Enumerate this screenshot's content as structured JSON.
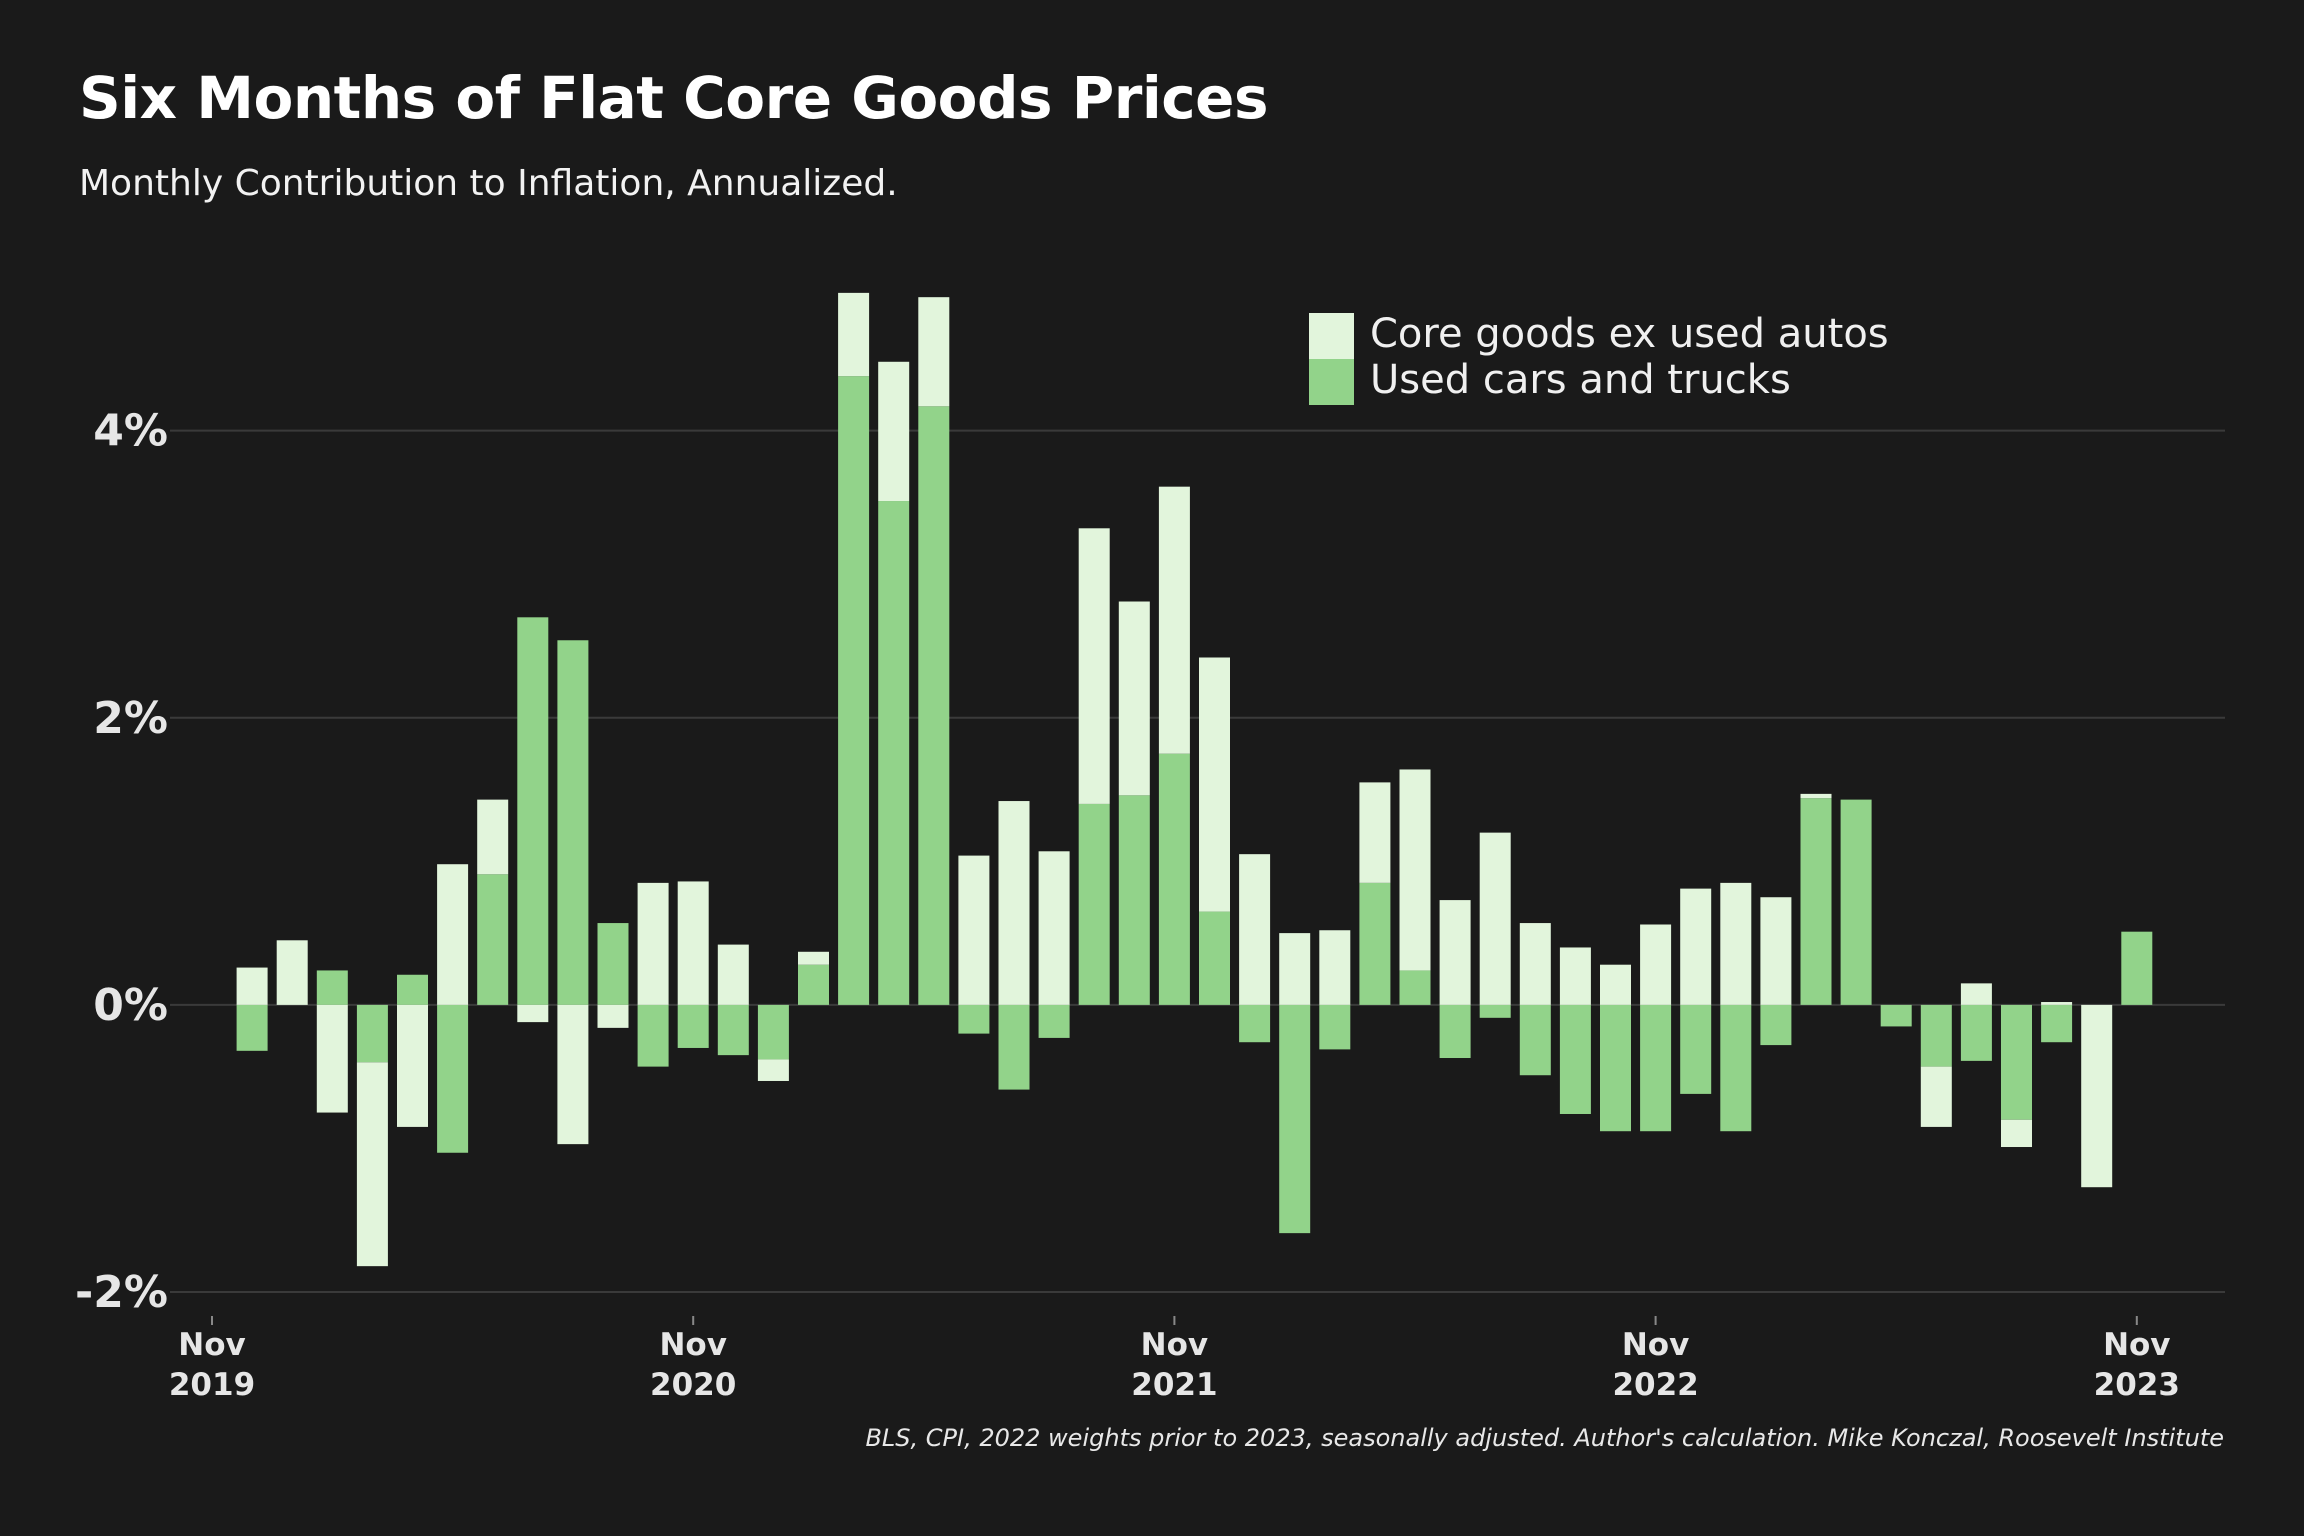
{
  "title": "Six Months of Flat Core Goods Prices",
  "subtitle": "Monthly Contribution to Inflation, Annualized.",
  "source": "BLS, CPI, 2022 weights prior to 2023, seasonally adjusted. Author's calculation. Mike Konczal, Roosevelt Institute",
  "colors": {
    "background": "#1a1a1a",
    "core_goods": "#e2f5dc",
    "used_cars": "#92d38a",
    "grid": "#3a3a3a",
    "axis_text": "#e6e6e6"
  },
  "chart_data": {
    "type": "bar",
    "stacked": true,
    "x_ticks": [
      {
        "line1": "Nov",
        "line2": "2019",
        "index": 0
      },
      {
        "line1": "Nov",
        "line2": "2020",
        "index": 12
      },
      {
        "line1": "Nov",
        "line2": "2021",
        "index": 24
      },
      {
        "line1": "Nov",
        "line2": "2022",
        "index": 36
      },
      {
        "line1": "Nov",
        "line2": "2023",
        "index": 48
      }
    ],
    "categories": [
      "Nov 2019",
      "Dec 2019",
      "Jan 2020",
      "Feb 2020",
      "Mar 2020",
      "Apr 2020",
      "May 2020",
      "Jun 2020",
      "Jul 2020",
      "Aug 2020",
      "Sep 2020",
      "Oct 2020",
      "Nov 2020",
      "Dec 2020",
      "Jan 2021",
      "Feb 2021",
      "Mar 2021",
      "Apr 2021",
      "May 2021",
      "Jun 2021",
      "Jul 2021",
      "Aug 2021",
      "Sep 2021",
      "Oct 2021",
      "Nov 2021",
      "Dec 2021",
      "Jan 2022",
      "Feb 2022",
      "Mar 2022",
      "Apr 2022",
      "May 2022",
      "Jun 2022",
      "Jul 2022",
      "Aug 2022",
      "Sep 2022",
      "Oct 2022",
      "Nov 2022",
      "Dec 2022",
      "Jan 2023",
      "Feb 2023",
      "Mar 2023",
      "Apr 2023",
      "May 2023",
      "Jun 2023",
      "Jul 2023",
      "Aug 2023",
      "Sep 2023",
      "Oct 2023",
      "Nov 2023"
    ],
    "ylim": [
      -2,
      4.98
    ],
    "y_ticks": [
      {
        "label": "4%",
        "value": 4
      },
      {
        "label": "2%",
        "value": 2
      },
      {
        "label": "0%",
        "value": 0
      },
      {
        "label": "-2%",
        "value": -2
      }
    ],
    "grid": true,
    "legend_position": "top-right",
    "series": [
      {
        "name": "Core goods ex used autos",
        "color": "#e2f5dc",
        "values": [
          0,
          0.26,
          0.45,
          -0.75,
          -1.42,
          -0.85,
          0.98,
          0.52,
          -0.12,
          -0.97,
          -0.16,
          0.85,
          0.86,
          0.42,
          -0.15,
          0.09,
          0.58,
          0.97,
          0.76,
          1.04,
          1.42,
          1.07,
          1.92,
          1.35,
          1.86,
          1.77,
          1.05,
          0.5,
          0.52,
          0.7,
          1.4,
          0.73,
          1.2,
          0.57,
          0.4,
          0.28,
          0.56,
          0.81,
          0.85,
          0.75,
          0.03,
          0,
          0,
          -0.42,
          0.15,
          -0.19,
          0.02,
          -1.27,
          0
        ]
      },
      {
        "name": "Used cars and trucks",
        "color": "#92d38a",
        "values": [
          0,
          -0.32,
          0,
          0.24,
          -0.4,
          0.21,
          -1.03,
          0.91,
          2.7,
          2.54,
          0.57,
          -0.43,
          -0.3,
          -0.35,
          -0.38,
          0.28,
          4.38,
          3.51,
          4.17,
          -0.2,
          -0.59,
          -0.23,
          1.4,
          1.46,
          1.75,
          0.65,
          -0.26,
          -1.59,
          -0.31,
          0.85,
          0.24,
          -0.37,
          -0.09,
          -0.49,
          -0.76,
          -0.88,
          -0.88,
          -0.62,
          -0.88,
          -0.28,
          1.44,
          1.43,
          -0.15,
          -0.43,
          -0.39,
          -0.8,
          -0.26,
          0,
          0.51
        ]
      }
    ]
  }
}
